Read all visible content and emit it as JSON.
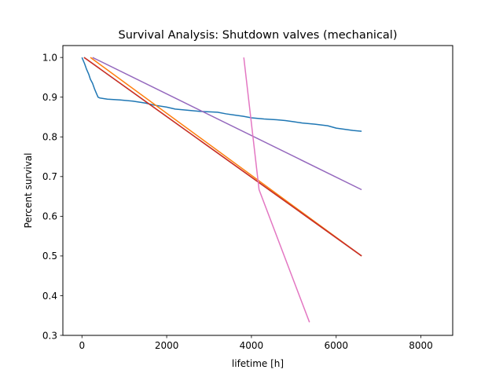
{
  "chart_data": {
    "type": "line",
    "title": "Survival Analysis: Shutdown valves (mechanical)",
    "xlabel": "lifetime [h]",
    "ylabel": "Percent survival",
    "xlim": [
      -450,
      8750
    ],
    "ylim": [
      0.3,
      1.03
    ],
    "xticks": [
      0,
      2000,
      4000,
      6000,
      8000
    ],
    "yticks": [
      0.3,
      0.4,
      0.5,
      0.6,
      0.7,
      0.8,
      0.9,
      1.0
    ],
    "grid": false,
    "legend": "none",
    "series": [
      {
        "color": "#1f77b4",
        "x": [
          0,
          60,
          110,
          160,
          200,
          250,
          300,
          340,
          380,
          420,
          600,
          900,
          1200,
          1500,
          1700,
          2000,
          2200,
          2500,
          2800,
          3000,
          3200,
          3400,
          3600,
          3800,
          4000,
          4300,
          4600,
          4800,
          5000,
          5200,
          5500,
          5800,
          6000,
          6200,
          6400,
          6600
        ],
        "y": [
          1.0,
          0.985,
          0.97,
          0.958,
          0.945,
          0.935,
          0.92,
          0.91,
          0.9,
          0.898,
          0.895,
          0.893,
          0.89,
          0.885,
          0.88,
          0.875,
          0.87,
          0.867,
          0.864,
          0.863,
          0.862,
          0.858,
          0.855,
          0.852,
          0.848,
          0.845,
          0.843,
          0.841,
          0.838,
          0.835,
          0.832,
          0.828,
          0.822,
          0.819,
          0.816,
          0.814
        ]
      },
      {
        "color": "#ff7f0e",
        "x": [
          200,
          6600
        ],
        "y": [
          1.0,
          0.5
        ]
      },
      {
        "color": "#2ca02c",
        "x": [
          50,
          6600
        ],
        "y": [
          1.0,
          0.5
        ]
      },
      {
        "color": "#d62728",
        "x": [
          50,
          6600
        ],
        "y": [
          1.0,
          0.5
        ]
      },
      {
        "color": "#9467bd",
        "x": [
          250,
          6600
        ],
        "y": [
          1.0,
          0.667
        ]
      },
      {
        "color": "#e377c2",
        "x": [
          3820,
          4180,
          5370
        ],
        "y": [
          1.0,
          0.667,
          0.333
        ]
      }
    ]
  }
}
